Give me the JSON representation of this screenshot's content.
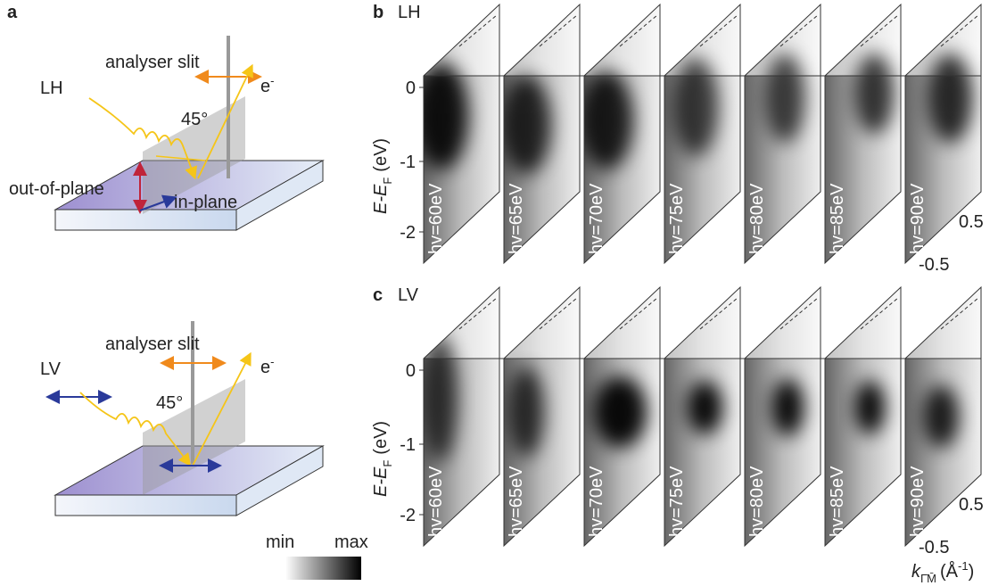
{
  "panel_a": {
    "label": "a",
    "top": {
      "polarization": "LH",
      "slit": "analyser slit",
      "electron": "e",
      "electron_charge": "-",
      "angle": "45°",
      "out_of_plane": "out-of-plane",
      "in_plane": "in-plane"
    },
    "bottom": {
      "polarization": "LV",
      "slit": "analyser slit",
      "electron": "e",
      "electron_charge": "-",
      "angle": "45°"
    }
  },
  "colorbar": {
    "min": "min",
    "max": "max"
  },
  "panel_b": {
    "label": "b",
    "polarization": "LH",
    "energies": [
      "hv=60eV",
      "hv=65eV",
      "hv=70eV",
      "hv=75eV",
      "hv=80eV",
      "hv=85eV",
      "hv=90eV"
    ],
    "yticks": [
      "0",
      "-1",
      "-2"
    ],
    "kticks": [
      "0.5",
      "-0.5"
    ],
    "y_label": "E-E",
    "y_label_sub": "F",
    "y_label_unit": "(eV)"
  },
  "panel_c": {
    "label": "c",
    "polarization": "LV",
    "energies": [
      "hv=60eV",
      "hv=65eV",
      "hv=70eV",
      "hv=75eV",
      "hv=80eV",
      "hv=85eV",
      "hv=90eV"
    ],
    "yticks": [
      "0",
      "-1",
      "-2"
    ],
    "kticks": [
      "0.5",
      "-0.5"
    ],
    "y_label": "E-E",
    "y_label_sub": "F",
    "y_label_unit": "(eV)"
  },
  "k_axis": {
    "label": "k",
    "label_sub": "Γ̄M̄",
    "unit": "(Å",
    "unit_sup": "-1",
    "unit_close": ")"
  }
}
